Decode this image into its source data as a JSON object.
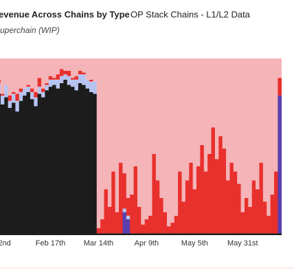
{
  "chart_data": {
    "type": "stacked_bar",
    "title": "evenue Across Chains by Type",
    "source": "OP Stack Chains - L1/L2 Data",
    "subtitle": "uperchain (WIP)",
    "categories": [
      null,
      "22nd",
      null,
      null,
      null,
      null,
      null,
      null,
      null,
      null,
      null,
      null,
      null,
      null,
      "Feb 17th",
      null,
      null,
      null,
      null,
      null,
      null,
      null,
      null,
      null,
      null,
      null,
      null,
      "Mar 14th",
      null,
      null,
      null,
      null,
      null,
      null,
      null,
      null,
      null,
      null,
      null,
      null,
      "Apr 9th",
      null,
      null,
      null,
      null,
      null,
      null,
      null,
      null,
      null,
      null,
      null,
      null,
      "May 5th",
      null,
      null,
      null,
      null,
      null,
      null,
      null,
      null,
      null,
      null,
      null,
      null,
      "May 31st",
      null,
      null,
      null,
      null,
      null,
      null,
      null,
      null,
      null,
      null
    ],
    "ylim": [
      0,
      100
    ],
    "series": [
      {
        "color": "#1c1c1c",
        "values": [
          80,
          74,
          78,
          72,
          75,
          70,
          76,
          79,
          81,
          77,
          73,
          80,
          78,
          82,
          84,
          85,
          83,
          86,
          88,
          85,
          84,
          82,
          86,
          85,
          83,
          81,
          80,
          1,
          1,
          1,
          1,
          1,
          1,
          1,
          1,
          1,
          1,
          1,
          1,
          1,
          1,
          1,
          1,
          1,
          1,
          1,
          1,
          1,
          1,
          1,
          1,
          1,
          1,
          1,
          1,
          1,
          1,
          1,
          1,
          1,
          1,
          1,
          1,
          1,
          1,
          1,
          1,
          1,
          1,
          1,
          1,
          1,
          1,
          1,
          1,
          1,
          1
        ]
      },
      {
        "color": "#5a3fb0",
        "values": [
          0,
          0,
          0,
          0,
          0,
          0,
          0,
          0,
          0,
          0,
          0,
          0,
          0,
          0,
          0,
          0,
          0,
          0,
          0,
          0,
          0,
          0,
          0,
          0,
          0,
          0,
          0,
          0,
          0,
          0,
          0,
          0,
          0,
          0,
          12,
          8,
          0,
          0,
          0,
          0,
          0,
          0,
          0,
          0,
          0,
          0,
          0,
          0,
          0,
          0,
          0,
          0,
          0,
          0,
          0,
          0,
          0,
          0,
          0,
          0,
          0,
          0,
          0,
          0,
          0,
          0,
          0,
          0,
          0,
          0,
          0,
          0,
          0,
          0,
          0,
          0,
          78
        ]
      },
      {
        "color": "#b8c4f0",
        "values": [
          6,
          5,
          7,
          4,
          5,
          6,
          5,
          4,
          3,
          4,
          5,
          4,
          3,
          3,
          4,
          3,
          5,
          4,
          3,
          5,
          4,
          6,
          5,
          6,
          5,
          6,
          7,
          0,
          0,
          0,
          0,
          0,
          0,
          0,
          2,
          2,
          0,
          0,
          0,
          0,
          0,
          0,
          0,
          0,
          0,
          0,
          0,
          0,
          0,
          0,
          0,
          0,
          0,
          0,
          0,
          0,
          0,
          0,
          0,
          0,
          0,
          0,
          0,
          0,
          0,
          0,
          0,
          0,
          0,
          0,
          0,
          0,
          0,
          0,
          0,
          0,
          0
        ]
      },
      {
        "color": "#e8302c",
        "values": [
          2,
          1,
          0,
          3,
          1,
          4,
          2,
          0,
          1,
          2,
          3,
          5,
          2,
          1,
          2,
          1,
          3,
          4,
          2,
          3,
          1,
          2,
          2,
          1,
          0,
          1,
          0,
          3,
          8,
          25,
          15,
          35,
          12,
          40,
          20,
          10,
          22,
          38,
          15,
          5,
          8,
          10,
          45,
          30,
          20,
          12,
          4,
          6,
          10,
          35,
          18,
          30,
          40,
          25,
          38,
          50,
          35,
          45,
          60,
          42,
          55,
          48,
          30,
          40,
          35,
          28,
          12,
          20,
          15,
          30,
          25,
          40,
          18,
          10,
          22,
          35,
          10
        ]
      },
      {
        "color": "#f4b4b8",
        "values": [
          12,
          20,
          15,
          21,
          19,
          20,
          17,
          17,
          15,
          17,
          19,
          11,
          17,
          14,
          10,
          11,
          9,
          6,
          7,
          7,
          11,
          10,
          7,
          8,
          12,
          12,
          13,
          96,
          91,
          74,
          84,
          64,
          87,
          59,
          65,
          79,
          77,
          61,
          84,
          94,
          91,
          89,
          54,
          69,
          79,
          87,
          95,
          93,
          89,
          64,
          81,
          69,
          59,
          74,
          61,
          49,
          64,
          54,
          39,
          57,
          44,
          51,
          69,
          59,
          64,
          71,
          87,
          79,
          84,
          69,
          74,
          59,
          81,
          89,
          77,
          64,
          11
        ]
      }
    ]
  }
}
